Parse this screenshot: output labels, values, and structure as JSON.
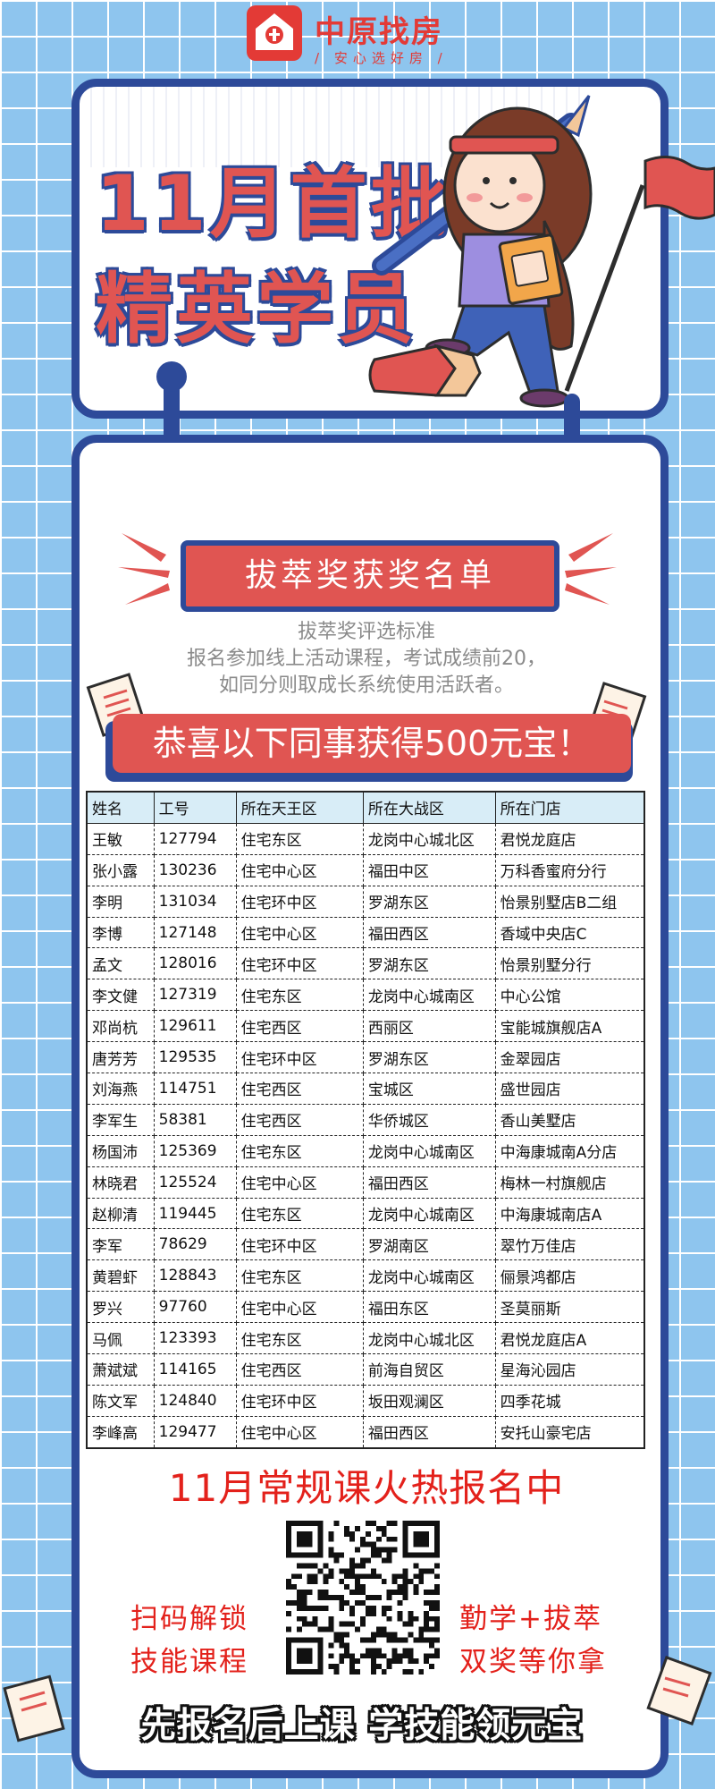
{
  "brand": {
    "name": "中原找房",
    "slogan": "/ 安心选好房 /",
    "color": "#e33a36"
  },
  "hero": {
    "title_line1": "11月首批",
    "title_line2": "精英学员"
  },
  "award": {
    "banner": "拔萃奖获奖名单",
    "criteria_title": "拔萃奖评选标准",
    "criteria_line1": "报名参加线上活动课程，考试成绩前20，",
    "criteria_line2": "如同分则取成长系统使用活跃者。",
    "congrats": "恭喜以下同事获得500元宝！"
  },
  "table": {
    "headers": [
      "姓名",
      "工号",
      "所在天王区",
      "所在大战区",
      "所在门店"
    ],
    "rows": [
      [
        "王敏",
        "127794",
        "住宅东区",
        "龙岗中心城北区",
        "君悦龙庭店"
      ],
      [
        "张小露",
        "130236",
        "住宅中心区",
        "福田中区",
        "万科香蜜府分行"
      ],
      [
        "李明",
        "131034",
        "住宅环中区",
        "罗湖东区",
        "怡景别墅店B二组"
      ],
      [
        "李博",
        "127148",
        "住宅中心区",
        "福田西区",
        "香域中央店C"
      ],
      [
        "孟文",
        "128016",
        "住宅环中区",
        "罗湖东区",
        "怡景别墅分行"
      ],
      [
        "李文健",
        "127319",
        "住宅东区",
        "龙岗中心城南区",
        "中心公馆"
      ],
      [
        "邓尚杭",
        "129611",
        "住宅西区",
        "西丽区",
        "宝能城旗舰店A"
      ],
      [
        "唐芳芳",
        "129535",
        "住宅环中区",
        "罗湖东区",
        "金翠园店"
      ],
      [
        "刘海燕",
        "114751",
        "住宅西区",
        "宝城区",
        "盛世园店"
      ],
      [
        "李军生",
        "58381",
        "住宅西区",
        "华侨城区",
        "香山美墅店"
      ],
      [
        "杨国沛",
        "125369",
        "住宅东区",
        "龙岗中心城南区",
        "中海康城南A分店"
      ],
      [
        "林晓君",
        "125524",
        "住宅中心区",
        "福田西区",
        "梅林一村旗舰店"
      ],
      [
        "赵柳清",
        "119445",
        "住宅东区",
        "龙岗中心城南区",
        "中海康城南店A"
      ],
      [
        "李军",
        "78629",
        "住宅环中区",
        "罗湖南区",
        "翠竹万佳店"
      ],
      [
        "黄碧虾",
        "128843",
        "住宅东区",
        "龙岗中心城南区",
        "俪景鸿都店"
      ],
      [
        "罗兴",
        "97760",
        "住宅中心区",
        "福田东区",
        "圣莫丽斯"
      ],
      [
        "马佩",
        "123393",
        "住宅东区",
        "龙岗中心城北区",
        "君悦龙庭店A"
      ],
      [
        "萧斌斌",
        "114165",
        "住宅西区",
        "前海自贸区",
        "星海沁园店"
      ],
      [
        "陈文军",
        "124840",
        "住宅环中区",
        "坂田观澜区",
        "四季花城"
      ],
      [
        "李峰高",
        "129477",
        "住宅中心区",
        "福田西区",
        "安托山豪宅店"
      ]
    ]
  },
  "promo": {
    "title": "11月常规课火热报名中",
    "left_line1": "扫码解锁",
    "left_line2": "技能课程",
    "right_line1": "勤学+拔萃",
    "right_line2": "双奖等你拿",
    "bottom_slogan": "先报名后上课 学技能领元宝"
  },
  "colors": {
    "accent_red": "#e05552",
    "navy": "#2d4a99",
    "sky": "#8ec5ee"
  }
}
